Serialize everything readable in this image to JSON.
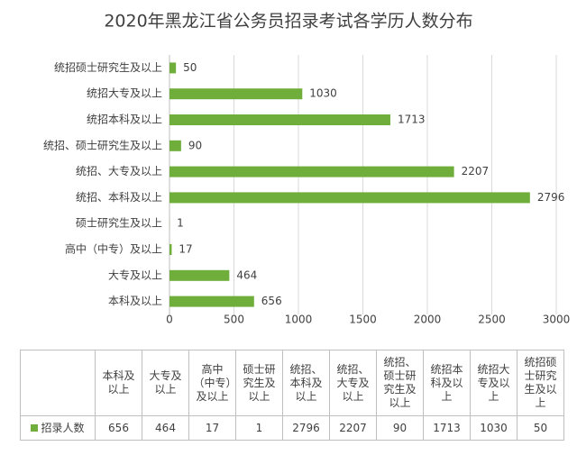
{
  "chart_data": {
    "type": "bar",
    "orientation": "horizontal",
    "title": "2020年黑龙江省公务员招录考试各学历人数分布",
    "categories": [
      "本科及以上",
      "大专及以上",
      "高中（中专）及以上",
      "硕士研究生及以上",
      "统招、本科及以上",
      "统招、大专及以上",
      "统招、硕士研究生及以上",
      "统招本科及以上",
      "统招大专及以上",
      "统招硕士研究生及以上"
    ],
    "series": [
      {
        "name": "招录人数",
        "color": "#6fae3a",
        "values": [
          656,
          464,
          17,
          1,
          2796,
          2207,
          90,
          1713,
          1030,
          50
        ]
      }
    ],
    "xlim": [
      0,
      3000
    ],
    "xticks": [
      0,
      500,
      1000,
      1500,
      2000,
      2500,
      3000
    ],
    "grid": true,
    "data_table": true
  }
}
